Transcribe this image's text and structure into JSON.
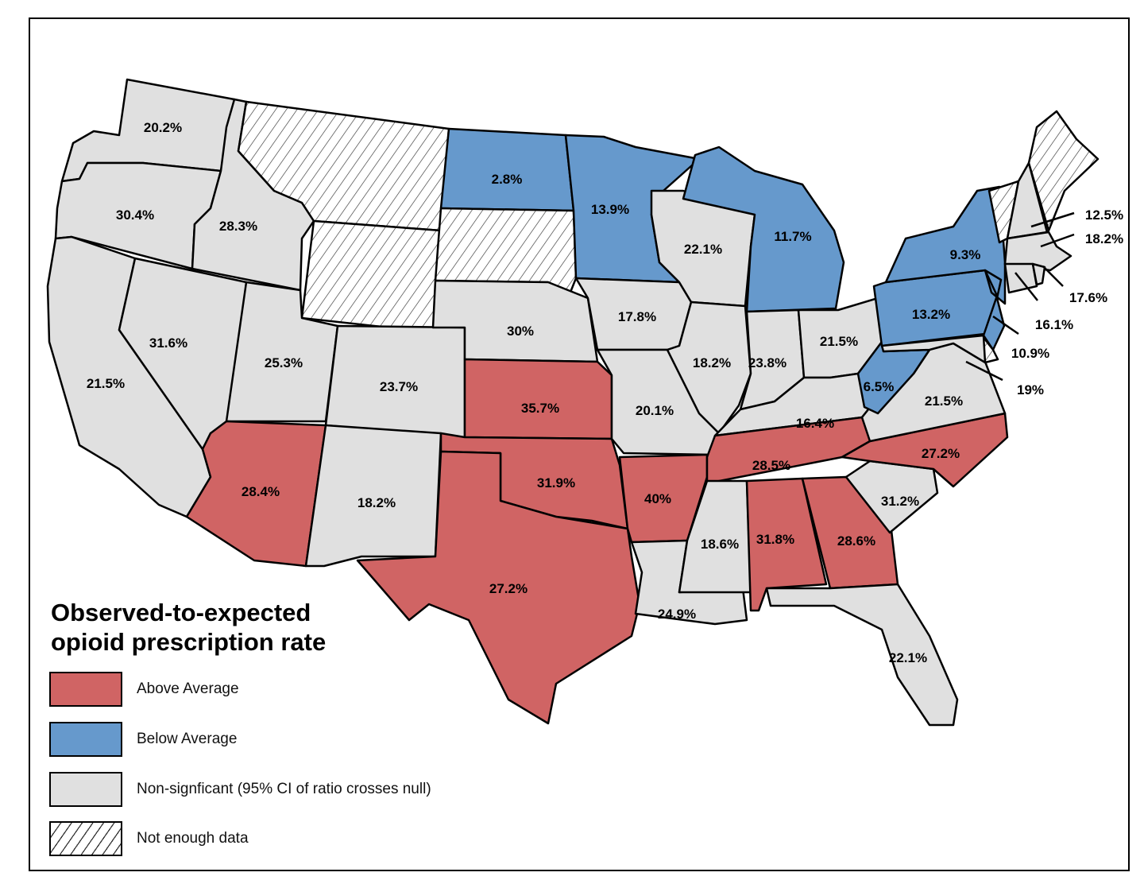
{
  "legend": {
    "title_line1": "Observed-to-expected",
    "title_line2": "opioid prescription rate",
    "items": [
      {
        "category": "above",
        "label": "Above Average",
        "color": "#d06464"
      },
      {
        "category": "below",
        "label": "Below Average",
        "color": "#6699cc"
      },
      {
        "category": "ns",
        "label": "Non-signficant (95% CI of ratio crosses null)",
        "color": "#e0e0e0"
      },
      {
        "category": "nodata",
        "label": "Not enough data",
        "pattern": "diagonal-hatch"
      }
    ]
  },
  "states": [
    {
      "state": "WA",
      "value": "20.2%",
      "category": "ns"
    },
    {
      "state": "OR",
      "value": "30.4%",
      "category": "ns"
    },
    {
      "state": "CA",
      "value": "21.5%",
      "category": "ns"
    },
    {
      "state": "ID",
      "value": "28.3%",
      "category": "ns"
    },
    {
      "state": "NV",
      "value": "31.6%",
      "category": "ns"
    },
    {
      "state": "MT",
      "value": "",
      "category": "nodata"
    },
    {
      "state": "WY",
      "value": "",
      "category": "nodata"
    },
    {
      "state": "UT",
      "value": "25.3%",
      "category": "ns"
    },
    {
      "state": "AZ",
      "value": "28.4%",
      "category": "above"
    },
    {
      "state": "CO",
      "value": "23.7%",
      "category": "ns"
    },
    {
      "state": "NM",
      "value": "18.2%",
      "category": "ns"
    },
    {
      "state": "ND",
      "value": "2.8%",
      "category": "below"
    },
    {
      "state": "SD",
      "value": "",
      "category": "nodata"
    },
    {
      "state": "NE",
      "value": "30%",
      "category": "ns"
    },
    {
      "state": "KS",
      "value": "35.7%",
      "category": "above"
    },
    {
      "state": "OK",
      "value": "31.9%",
      "category": "above"
    },
    {
      "state": "TX",
      "value": "27.2%",
      "category": "above"
    },
    {
      "state": "MN",
      "value": "13.9%",
      "category": "below"
    },
    {
      "state": "IA",
      "value": "17.8%",
      "category": "ns"
    },
    {
      "state": "MO",
      "value": "20.1%",
      "category": "ns"
    },
    {
      "state": "AR",
      "value": "40%",
      "category": "above"
    },
    {
      "state": "LA",
      "value": "24.9%",
      "category": "ns"
    },
    {
      "state": "WI",
      "value": "22.1%",
      "category": "ns"
    },
    {
      "state": "IL",
      "value": "18.2%",
      "category": "ns"
    },
    {
      "state": "MI",
      "value": "11.7%",
      "category": "below"
    },
    {
      "state": "IN",
      "value": "23.8%",
      "category": "ns"
    },
    {
      "state": "OH",
      "value": "21.5%",
      "category": "ns"
    },
    {
      "state": "KY",
      "value": "16.4%",
      "category": "ns"
    },
    {
      "state": "TN",
      "value": "28.5%",
      "category": "above"
    },
    {
      "state": "MS",
      "value": "18.6%",
      "category": "ns"
    },
    {
      "state": "AL",
      "value": "31.8%",
      "category": "above"
    },
    {
      "state": "GA",
      "value": "28.6%",
      "category": "above"
    },
    {
      "state": "FL",
      "value": "22.1%",
      "category": "ns"
    },
    {
      "state": "SC",
      "value": "31.2%",
      "category": "ns"
    },
    {
      "state": "NC",
      "value": "27.2%",
      "category": "above"
    },
    {
      "state": "VA",
      "value": "21.5%",
      "category": "ns"
    },
    {
      "state": "WV",
      "value": "6.5%",
      "category": "below"
    },
    {
      "state": "PA",
      "value": "13.2%",
      "category": "below"
    },
    {
      "state": "NY",
      "value": "9.3%",
      "category": "below"
    },
    {
      "state": "NJ",
      "value": "10.9%",
      "category": "below"
    },
    {
      "state": "DE",
      "value": "",
      "category": "nodata"
    },
    {
      "state": "MD",
      "value": "19%",
      "category": "ns"
    },
    {
      "state": "VT",
      "value": "",
      "category": "nodata"
    },
    {
      "state": "NH",
      "value": "12.5%",
      "category": "ns"
    },
    {
      "state": "ME",
      "value": "",
      "category": "nodata"
    },
    {
      "state": "MA",
      "value": "18.2%",
      "category": "ns"
    },
    {
      "state": "CT",
      "value": "16.1%",
      "category": "ns"
    },
    {
      "state": "RI",
      "value": "17.6%",
      "category": "ns"
    }
  ]
}
